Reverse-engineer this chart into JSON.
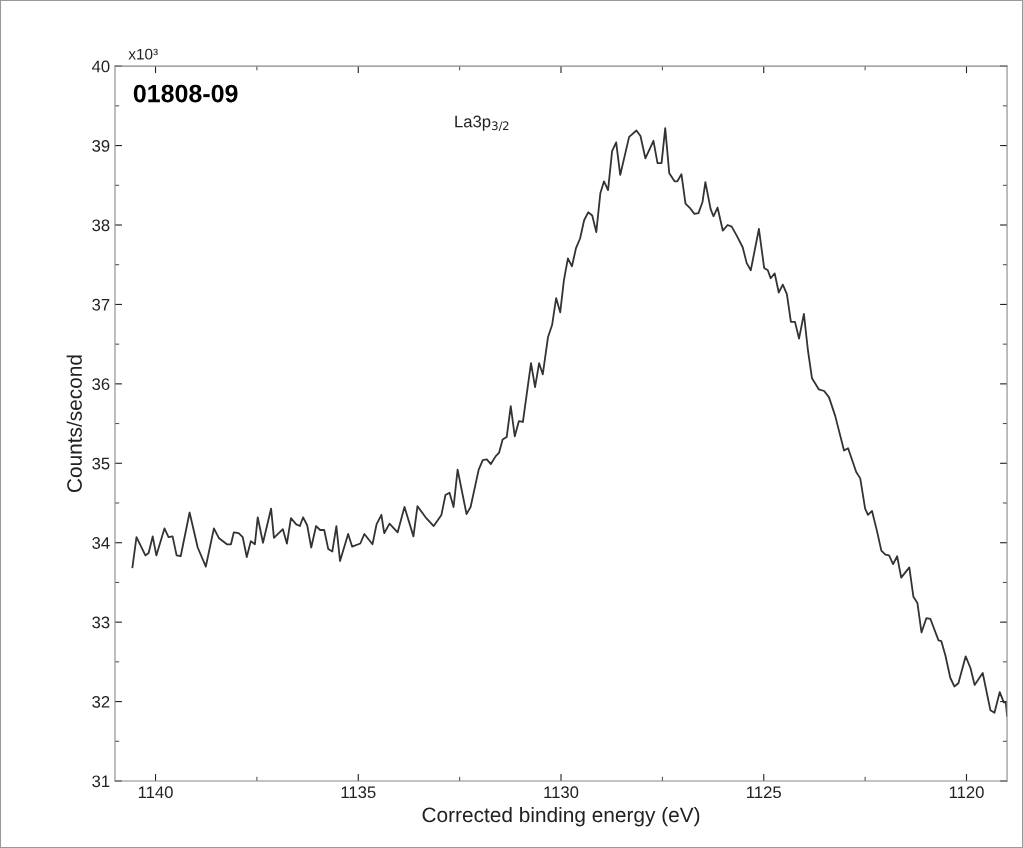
{
  "chart_data": {
    "type": "line",
    "title": "01808-09",
    "xlabel": "Corrected binding energy (eV)",
    "ylabel": "Counts/second",
    "annotations": [
      "x10³",
      "La3p$_{3/2}$"
    ],
    "xlim": [
      1141,
      1119
    ],
    "xticks": [
      1140,
      1135,
      1130,
      1125,
      1120
    ],
    "ylim": [
      31,
      40
    ],
    "yticks": [
      31,
      32,
      33,
      34,
      35,
      36,
      37,
      38,
      39,
      40
    ],
    "grid": false,
    "legend": false,
    "marker": "none",
    "line_style": "solid",
    "series": [
      {
        "color": "#333333",
        "x": [
          1140.57,
          1140.47,
          1140.25,
          1140.17,
          1140.07,
          1139.98,
          1139.78,
          1139.68,
          1139.58,
          1139.48,
          1139.38,
          1139.16,
          1138.96,
          1138.76,
          1138.56,
          1138.44,
          1138.24,
          1138.14,
          1138.07,
          1137.95,
          1137.85,
          1137.75,
          1137.65,
          1137.55,
          1137.48,
          1137.35,
          1137.15,
          1137.08,
          1136.86,
          1136.76,
          1136.66,
          1136.53,
          1136.44,
          1136.36,
          1136.26,
          1136.16,
          1136.04,
          1135.94,
          1135.84,
          1135.74,
          1135.64,
          1135.54,
          1135.45,
          1135.25,
          1135.15,
          1134.95,
          1134.85,
          1134.65,
          1134.55,
          1134.43,
          1134.36,
          1134.23,
          1134.03,
          1133.86,
          1133.64,
          1133.54,
          1133.34,
          1133.14,
          1132.95,
          1132.85,
          1132.75,
          1132.65,
          1132.55,
          1132.33,
          1132.23,
          1132.03,
          1131.93,
          1131.83,
          1131.73,
          1131.61,
          1131.53,
          1131.44,
          1131.34,
          1131.24,
          1131.14,
          1131.04,
          1130.94,
          1130.74,
          1130.64,
          1130.54,
          1130.45,
          1130.32,
          1130.22,
          1130.12,
          1130.02,
          1129.93,
          1129.83,
          1129.73,
          1129.63,
          1129.53,
          1129.43,
          1129.33,
          1129.23,
          1129.13,
          1129.03,
          1128.94,
          1128.84,
          1128.74,
          1128.64,
          1128.54,
          1128.32,
          1128.14,
          1128.04,
          1127.92,
          1127.72,
          1127.62,
          1127.52,
          1127.43,
          1127.33,
          1127.2,
          1127.13,
          1127.03,
          1126.93,
          1126.83,
          1126.71,
          1126.61,
          1126.51,
          1126.44,
          1126.31,
          1126.24,
          1126.14,
          1126.01,
          1125.89,
          1125.79,
          1125.67,
          1125.52,
          1125.42,
          1125.32,
          1125.12,
          1124.99,
          1124.9,
          1124.83,
          1124.73,
          1124.63,
          1124.53,
          1124.43,
          1124.33,
          1124.23,
          1124.13,
          1124.01,
          1123.91,
          1123.81,
          1123.64,
          1123.51,
          1123.39,
          1123.24,
          1123.02,
          1122.92,
          1122.72,
          1122.62,
          1122.5,
          1122.43,
          1122.33,
          1122.2,
          1122.1,
          1122.0,
          1121.91,
          1121.81,
          1121.71,
          1121.61,
          1121.41,
          1121.31,
          1121.21,
          1121.11,
          1120.99,
          1120.89,
          1120.69,
          1120.62,
          1120.52,
          1120.4,
          1120.3,
          1120.2,
          1120.02,
          1119.9,
          1119.8,
          1119.6,
          1119.41,
          1119.31,
          1119.18,
          1119.08,
          1119.03,
          1119.0
        ],
        "values": [
          33.69,
          34.07,
          33.84,
          33.87,
          34.08,
          33.84,
          34.18,
          34.07,
          34.08,
          33.84,
          33.83,
          34.38,
          33.94,
          33.7,
          34.18,
          34.06,
          33.98,
          33.98,
          34.13,
          34.12,
          34.07,
          33.82,
          34.02,
          33.98,
          34.32,
          34.0,
          34.43,
          34.06,
          34.17,
          33.99,
          34.31,
          34.23,
          34.21,
          34.32,
          34.22,
          33.94,
          34.21,
          34.16,
          34.16,
          33.92,
          33.89,
          34.21,
          33.77,
          34.11,
          33.95,
          33.99,
          34.11,
          33.98,
          34.23,
          34.35,
          34.12,
          34.24,
          34.13,
          34.45,
          34.08,
          34.46,
          34.32,
          34.21,
          34.35,
          34.6,
          34.63,
          34.45,
          34.92,
          34.36,
          34.45,
          34.92,
          35.04,
          35.05,
          34.99,
          35.09,
          35.13,
          35.3,
          35.33,
          35.72,
          35.34,
          35.53,
          35.52,
          36.26,
          35.96,
          36.26,
          36.12,
          36.59,
          36.74,
          37.08,
          36.9,
          37.3,
          37.58,
          37.48,
          37.71,
          37.83,
          38.06,
          38.16,
          38.12,
          37.91,
          38.4,
          38.55,
          38.44,
          38.93,
          39.04,
          38.63,
          39.11,
          39.19,
          39.12,
          38.84,
          39.06,
          38.78,
          38.78,
          39.22,
          38.65,
          38.55,
          38.55,
          38.64,
          38.27,
          38.22,
          38.14,
          38.15,
          38.29,
          38.54,
          38.2,
          38.11,
          38.22,
          37.93,
          38.0,
          37.98,
          37.87,
          37.72,
          37.52,
          37.43,
          37.95,
          37.46,
          37.43,
          37.33,
          37.39,
          37.15,
          37.25,
          37.13,
          36.78,
          36.78,
          36.57,
          36.88,
          36.42,
          36.07,
          35.93,
          35.91,
          35.83,
          35.6,
          35.16,
          35.19,
          34.89,
          34.81,
          34.43,
          34.35,
          34.4,
          34.13,
          33.9,
          33.85,
          33.84,
          33.73,
          33.83,
          33.56,
          33.69,
          33.32,
          33.24,
          32.87,
          33.05,
          33.04,
          32.77,
          32.76,
          32.58,
          32.3,
          32.19,
          32.23,
          32.57,
          32.42,
          32.21,
          32.36,
          31.89,
          31.86,
          32.12,
          31.99,
          31.99,
          31.82
        ]
      }
    ]
  }
}
